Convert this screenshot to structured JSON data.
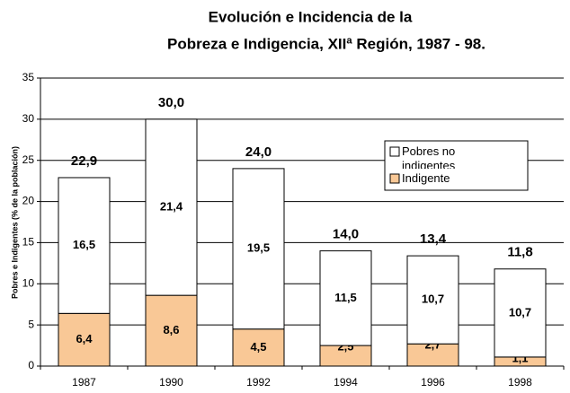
{
  "chart_data": {
    "type": "stacked_bar",
    "title": [
      "Evolución e Incidencia de la",
      "Pobreza e Indigencia, XIIª Región, 1987 - 98."
    ],
    "ylabel": "Pobres e Indigentes (% de la población)",
    "categories": [
      "1987",
      "1990",
      "1992",
      "1994",
      "1996",
      "1998"
    ],
    "series": [
      {
        "name": "Indigente",
        "color": "#f9c896",
        "values": [
          6.4,
          8.6,
          4.5,
          2.5,
          2.7,
          1.1
        ],
        "value_labels": [
          "6,4",
          "8,6",
          "4,5",
          "2,5",
          "2,7",
          "1,1"
        ]
      },
      {
        "name": "Pobres no indigentes",
        "color": "#ffffff",
        "values": [
          16.5,
          21.4,
          19.5,
          11.5,
          10.7,
          10.7
        ],
        "value_labels": [
          "16,5",
          "21,4",
          "19,5",
          "11,5",
          "10,7",
          "10,7"
        ]
      }
    ],
    "totals": [
      22.9,
      30.0,
      24.0,
      14.0,
      13.4,
      11.8
    ],
    "total_labels": [
      "22,9",
      "30,0",
      "24,0",
      "14,0",
      "13,4",
      "11,8"
    ],
    "ylim": [
      0,
      35
    ],
    "yticks": [
      0,
      5,
      10,
      15,
      20,
      25,
      30,
      35
    ],
    "grid": true
  }
}
